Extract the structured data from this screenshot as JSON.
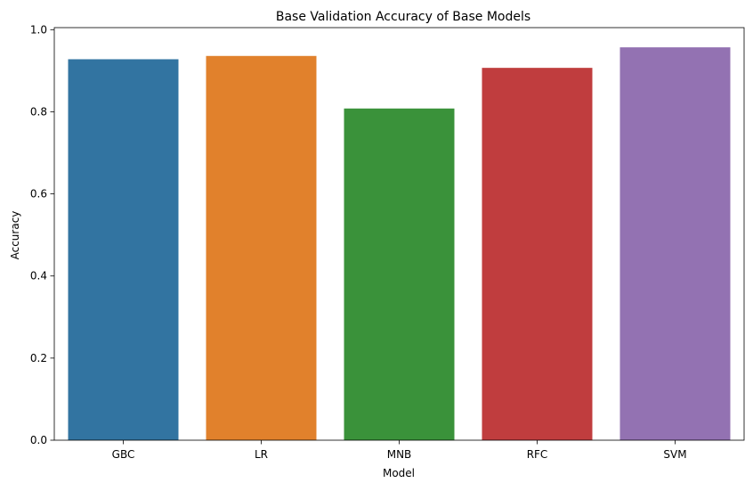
{
  "chart_data": {
    "type": "bar",
    "title": "Base Validation Accuracy of Base Models",
    "xlabel": "Model",
    "ylabel": "Accuracy",
    "categories": [
      "GBC",
      "LR",
      "MNB",
      "RFC",
      "SVM"
    ],
    "values": [
      0.928,
      0.936,
      0.808,
      0.907,
      0.957
    ],
    "colors": [
      "#3274a1",
      "#e1812c",
      "#3a923a",
      "#c03d3e",
      "#9372b2"
    ],
    "ylim": [
      0,
      1.0
    ],
    "yticks": [
      0.0,
      0.2,
      0.4,
      0.6,
      0.8,
      1.0
    ],
    "ytick_labels": [
      "0.0",
      "0.2",
      "0.4",
      "0.6",
      "0.8",
      "1.0"
    ],
    "grid": false,
    "legend": "none"
  }
}
